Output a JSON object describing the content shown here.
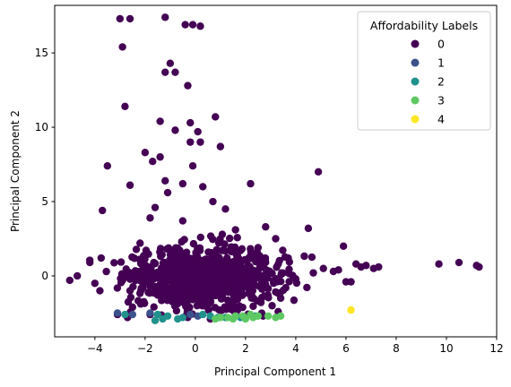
{
  "chart_data": {
    "type": "scatter",
    "xlabel": "Principal Component 1",
    "ylabel": "Principal Component 2",
    "xlim": [
      -5.6,
      12.0
    ],
    "ylim": [
      -4.1,
      18.2
    ],
    "xticks": [
      -4,
      -2,
      0,
      2,
      4,
      6,
      8,
      10,
      12
    ],
    "yticks": [
      0,
      5,
      10,
      15
    ],
    "grid": false,
    "legend": {
      "title": "Affordability Labels",
      "placement": "top-right",
      "entries": [
        {
          "label": "0",
          "color": "#440154"
        },
        {
          "label": "1",
          "color": "#3b528b"
        },
        {
          "label": "2",
          "color": "#21918c"
        },
        {
          "label": "3",
          "color": "#5ec962"
        },
        {
          "label": "4",
          "color": "#fde725"
        }
      ]
    },
    "series": [
      {
        "name": "0",
        "color": "#440154",
        "points": [
          [
            -3.0,
            17.3
          ],
          [
            -2.6,
            17.3
          ],
          [
            -1.2,
            17.4
          ],
          [
            -0.4,
            16.9
          ],
          [
            -0.1,
            16.9
          ],
          [
            0.2,
            16.8
          ],
          [
            -2.9,
            15.4
          ],
          [
            -1.0,
            14.3
          ],
          [
            -1.2,
            13.7
          ],
          [
            -0.8,
            13.7
          ],
          [
            -0.3,
            12.8
          ],
          [
            -2.8,
            11.4
          ],
          [
            0.8,
            10.7
          ],
          [
            -1.4,
            10.4
          ],
          [
            -0.2,
            10.3
          ],
          [
            -0.8,
            9.8
          ],
          [
            -0.2,
            9.0
          ],
          [
            0.2,
            9.0
          ],
          [
            1.0,
            8.7
          ],
          [
            -2.0,
            8.3
          ],
          [
            -1.4,
            8.0
          ],
          [
            -1.7,
            7.7
          ],
          [
            -3.5,
            7.4
          ],
          [
            -0.1,
            7.4
          ],
          [
            4.9,
            7.0
          ],
          [
            -2.6,
            6.1
          ],
          [
            -1.2,
            6.4
          ],
          [
            -0.5,
            6.2
          ],
          [
            0.3,
            6.0
          ],
          [
            2.2,
            6.2
          ],
          [
            -3.7,
            4.4
          ],
          [
            4.5,
            3.2
          ],
          [
            5.9,
            2.0
          ],
          [
            -4.2,
            0.9
          ],
          [
            -4.7,
            0.0
          ],
          [
            -5.0,
            -0.3
          ],
          [
            -3.1,
            -2.6
          ],
          [
            -2.7,
            -2.8
          ],
          [
            6.4,
            0.8
          ],
          [
            6.8,
            0.7
          ],
          [
            7.3,
            0.6
          ],
          [
            9.7,
            0.8
          ],
          [
            10.5,
            0.9
          ],
          [
            11.2,
            0.7
          ],
          [
            11.3,
            0.6
          ],
          [
            6.0,
            -0.4
          ],
          [
            6.2,
            -0.4
          ],
          [
            3.3,
            -2.4
          ],
          [
            4.0,
            -0.2
          ],
          [
            5.5,
            0.3
          ],
          [
            0.1,
            9.7
          ],
          [
            -1.6,
            4.6
          ],
          [
            -1.8,
            3.9
          ],
          [
            2.8,
            3.3
          ],
          [
            3.2,
            2.5
          ],
          [
            -3.8,
            -1.0
          ],
          [
            -4.0,
            -0.5
          ],
          [
            -2.5,
            -2.1
          ],
          [
            -1.8,
            -2.6
          ],
          [
            2.7,
            -2.7
          ],
          [
            3.7,
            1.2
          ],
          [
            3.6,
            -0.8
          ],
          [
            4.7,
            0.2
          ],
          [
            5.1,
            0.5
          ],
          [
            5.7,
            0.4
          ],
          [
            6.6,
            0.6
          ],
          [
            7.1,
            0.5
          ],
          [
            -0.5,
            3.7
          ],
          [
            1.2,
            4.5
          ],
          [
            0.7,
            5.0
          ],
          [
            -1.1,
            5.6
          ],
          [
            1.6,
            3.1
          ],
          [
            -2.2,
            2.2
          ],
          [
            -2.9,
            -0.3
          ],
          [
            -2.6,
            -1.0
          ],
          [
            2.5,
            1.9
          ],
          [
            3.4,
            -1.5
          ],
          [
            -0.3,
            -2.8
          ],
          [
            0.6,
            -2.9
          ],
          [
            1.6,
            -2.6
          ]
        ],
        "cloud": {
          "center": [
            0.3,
            -0.2
          ],
          "spread": [
            1.35,
            1.0
          ],
          "count": 900
        }
      },
      {
        "name": "1",
        "color": "#3b528b",
        "points": [
          [
            -3.1,
            -2.5
          ],
          [
            -2.5,
            -2.6
          ],
          [
            -1.8,
            -2.5
          ],
          [
            -0.2,
            -2.6
          ],
          [
            0.1,
            -2.7
          ]
        ]
      },
      {
        "name": "2",
        "color": "#21918c",
        "points": [
          [
            -2.8,
            -2.6
          ],
          [
            -1.5,
            -2.6
          ],
          [
            -1.1,
            -2.7
          ],
          [
            -0.7,
            -2.9
          ],
          [
            -0.5,
            -2.8
          ],
          [
            0.3,
            -2.6
          ],
          [
            0.6,
            -2.7
          ],
          [
            0.9,
            -2.8
          ],
          [
            1.2,
            -2.8
          ],
          [
            1.8,
            -2.8
          ],
          [
            2.4,
            -2.7
          ],
          [
            -1.6,
            -3.0
          ],
          [
            -1.3,
            -2.9
          ]
        ]
      },
      {
        "name": "3",
        "color": "#5ec962",
        "points": [
          [
            0.8,
            -2.9
          ],
          [
            1.0,
            -2.8
          ],
          [
            1.3,
            -2.8
          ],
          [
            1.6,
            -2.7
          ],
          [
            1.9,
            -2.7
          ],
          [
            2.0,
            -2.9
          ],
          [
            2.3,
            -2.8
          ],
          [
            2.5,
            -2.7
          ],
          [
            2.9,
            -2.7
          ],
          [
            3.2,
            -2.8
          ],
          [
            3.4,
            -2.7
          ],
          [
            1.5,
            -2.9
          ],
          [
            2.2,
            -2.6
          ]
        ]
      },
      {
        "name": "4",
        "color": "#fde725",
        "points": [
          [
            6.2,
            -2.3
          ]
        ]
      }
    ]
  }
}
